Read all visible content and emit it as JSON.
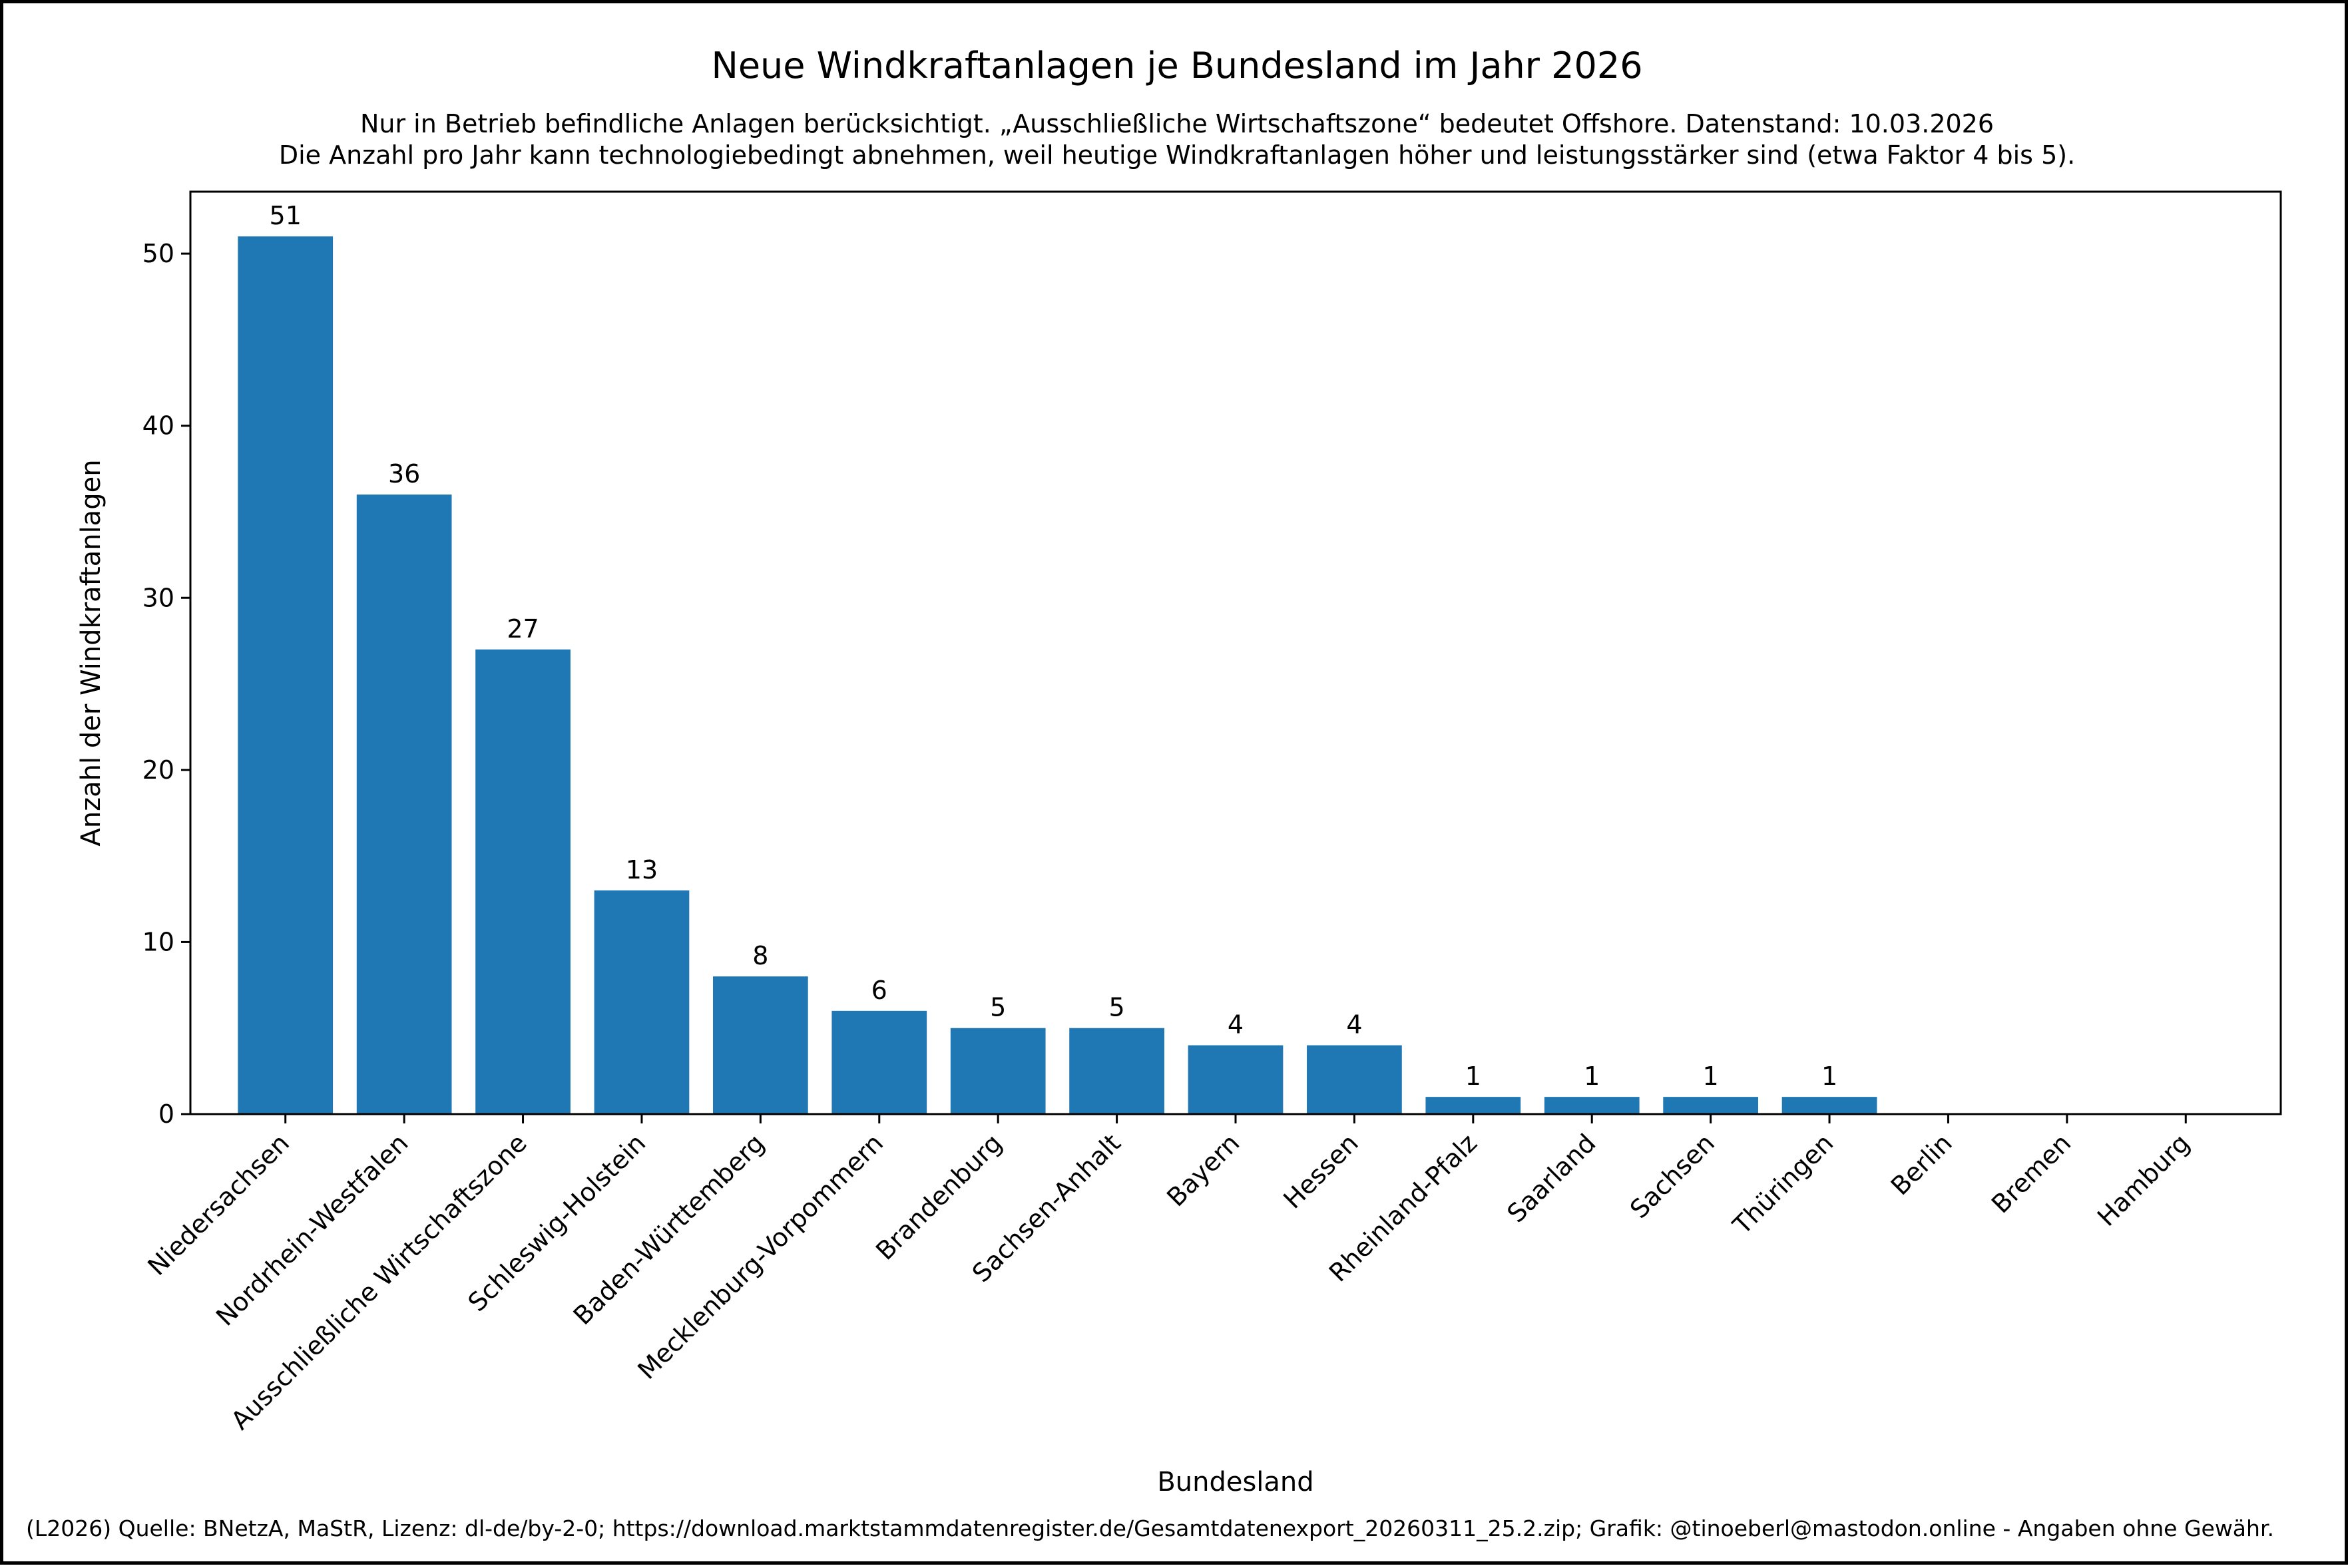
{
  "chart_data": {
    "type": "bar",
    "title": "Neue Windkraftanlagen je Bundesland im Jahr 2026",
    "subtitle_lines": [
      "Nur in Betrieb befindliche Anlagen berücksichtigt. „Ausschließliche Wirtschaftszone“ bedeutet Offshore. Datenstand: 10.03.2026",
      "Die Anzahl pro Jahr kann technologiebedingt abnehmen, weil heutige Windkraftanlagen höher und leistungsstärker sind (etwa Faktor 4 bis 5)."
    ],
    "xlabel": "Bundesland",
    "ylabel": "Anzahl der Windkraftanlagen",
    "categories": [
      "Niedersachsen",
      "Nordrhein-Westfalen",
      "Ausschließliche Wirtschaftszone",
      "Schleswig-Holstein",
      "Baden-Württemberg",
      "Mecklenburg-Vorpommern",
      "Brandenburg",
      "Sachsen-Anhalt",
      "Bayern",
      "Hessen",
      "Rheinland-Pfalz",
      "Saarland",
      "Sachsen",
      "Thüringen",
      "Berlin",
      "Bremen",
      "Hamburg"
    ],
    "values": [
      51,
      36,
      27,
      13,
      8,
      6,
      5,
      5,
      4,
      4,
      1,
      1,
      1,
      1,
      0,
      0,
      0
    ],
    "bar_labels": [
      "51",
      "36",
      "27",
      "13",
      "8",
      "6",
      "5",
      "5",
      "4",
      "4",
      "1",
      "1",
      "1",
      "1",
      "",
      "",
      ""
    ],
    "ylim": [
      0,
      53.6
    ],
    "yticks": [
      0,
      10,
      20,
      30,
      40,
      50
    ],
    "ytick_labels": [
      "0",
      "10",
      "20",
      "30",
      "40",
      "50"
    ],
    "grid": false,
    "legend": "none",
    "bar_color": "#1f77b4",
    "xtick_rotation_deg": 45
  },
  "footer": {
    "text": "(L2026) Quelle: BNetzA, MaStR, Lizenz: dl-de/by-2-0; https://download.marktstammdatenregister.de/Gesamtdatenexport_20260311_25.2.zip; Grafik: @tinoeberl@mastodon.online - Angaben ohne Gewähr."
  }
}
